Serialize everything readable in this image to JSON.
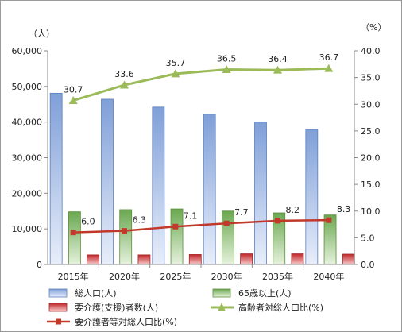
{
  "chart_data": {
    "type": "bar",
    "categories": [
      "2015年",
      "2020年",
      "2025年",
      "2030年",
      "2035年",
      "2040年"
    ],
    "y_left": {
      "unit": "（人）",
      "lim": [
        0,
        60000
      ],
      "step": 10000,
      "ticks": [
        "0",
        "10,000",
        "20,000",
        "30,000",
        "40,000",
        "50,000",
        "60,000"
      ]
    },
    "y_right": {
      "unit": "（%）",
      "lim": [
        0,
        40
      ],
      "step": 5,
      "ticks": [
        "0.0",
        "5.0",
        "10.0",
        "15.0",
        "20.0",
        "25.0",
        "30.0",
        "35.0",
        "40.0"
      ]
    },
    "series": [
      {
        "name": "総人口(人)",
        "kind": "bar",
        "axis": "left",
        "color": "#9db8e3",
        "values": [
          48100,
          46400,
          44200,
          42200,
          40000,
          37800
        ]
      },
      {
        "name": "65歳以上(人)",
        "kind": "bar",
        "axis": "left",
        "color": "#8cc569",
        "values": [
          14800,
          15400,
          15600,
          15000,
          14500,
          13900
        ]
      },
      {
        "name": "要介護(支援)者数(人)",
        "kind": "bar",
        "axis": "left",
        "color": "#d93a3a",
        "values": [
          2700,
          2700,
          2800,
          3000,
          3000,
          2900
        ]
      },
      {
        "name": "高齢者対総人口比(%)",
        "kind": "line",
        "axis": "right",
        "color": "#9bbb59",
        "values": [
          30.7,
          33.6,
          35.7,
          36.5,
          36.4,
          36.7
        ],
        "labels": [
          "30.7",
          "33.6",
          "35.7",
          "36.5",
          "36.4",
          "36.7"
        ]
      },
      {
        "name": "要介護者等対総人口比(%)",
        "kind": "line",
        "axis": "right",
        "color": "#c0392b",
        "values": [
          6.0,
          6.3,
          7.1,
          7.7,
          8.2,
          8.3
        ],
        "labels": [
          "6.0",
          "6.3",
          "7.1",
          "7.7",
          "8.2",
          "8.3"
        ]
      }
    ],
    "grid": false,
    "legend": "bottom"
  }
}
